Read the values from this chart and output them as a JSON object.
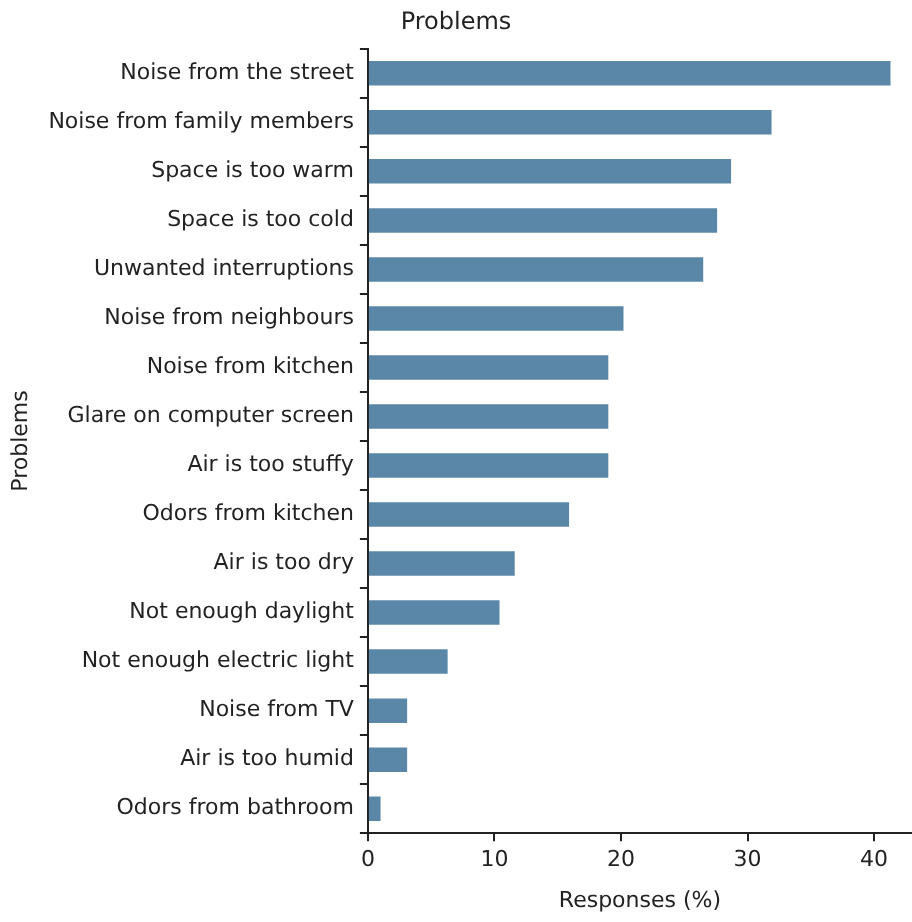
{
  "chart_data": {
    "type": "bar",
    "orientation": "horizontal",
    "title": "Problems",
    "xlabel": "Responses (%)",
    "ylabel": "Problems",
    "categories": [
      "Noise from the street",
      "Noise from family members",
      "Space is too warm",
      "Space is too cold",
      "Unwanted interruptions",
      "Noise from neighbours",
      "Noise from kitchen",
      "Glare on computer screen",
      "Air is too stuffy",
      "Odors from kitchen",
      "Air is too dry",
      "Not enough daylight",
      "Not enough electric light",
      "Noise from TV",
      "Air is too humid",
      "Odors from bathroom"
    ],
    "values": [
      41.3,
      31.9,
      28.7,
      27.6,
      26.5,
      20.2,
      19.0,
      19.0,
      19.0,
      15.9,
      11.6,
      10.4,
      6.3,
      3.1,
      3.1,
      1.0
    ],
    "color": "#5a87a8",
    "xlim": [
      0,
      43
    ],
    "xticks": [
      0,
      10,
      20,
      30,
      40
    ],
    "grid": false,
    "legend": false
  }
}
